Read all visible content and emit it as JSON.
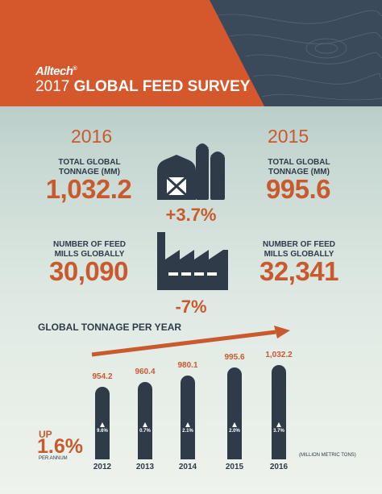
{
  "header": {
    "logo_text": "Alltech",
    "logo_mark": "®",
    "year": "2017",
    "title": "GLOBAL FEED SURVEY"
  },
  "stats": {
    "year_left": "2016",
    "year_right": "2015",
    "tonnage_label": "TOTAL GLOBAL TONNAGE (MM)",
    "tonnage_left": "1,032.2",
    "tonnage_right": "995.6",
    "tonnage_change": "+3.7%",
    "mills_label": "NUMBER OF FEED MILLS GLOBALLY",
    "mills_left": "30,090",
    "mills_right": "32,341",
    "mills_change": "-7%"
  },
  "tonnage_chart": {
    "title": "GLOBAL TONNAGE PER YEAR",
    "up_label": "UP",
    "up_value": "1.6%",
    "per_annum": "PER ANNUM",
    "units": "(MILLION METRIC TONS)",
    "bars": [
      {
        "year": "2012",
        "value": "954.2",
        "growth": "9.6%"
      },
      {
        "year": "2013",
        "value": "960.4",
        "growth": "0.7%"
      },
      {
        "year": "2014",
        "value": "980.1",
        "growth": "2.1%"
      },
      {
        "year": "2015",
        "value": "995.6",
        "growth": "2.0%"
      },
      {
        "year": "2016",
        "value": "1,032.2",
        "growth": "3.7%"
      }
    ]
  },
  "colors": {
    "orange": "#d4582c",
    "navy": "#2f3b48",
    "header_dark": "#3b4a5a"
  }
}
